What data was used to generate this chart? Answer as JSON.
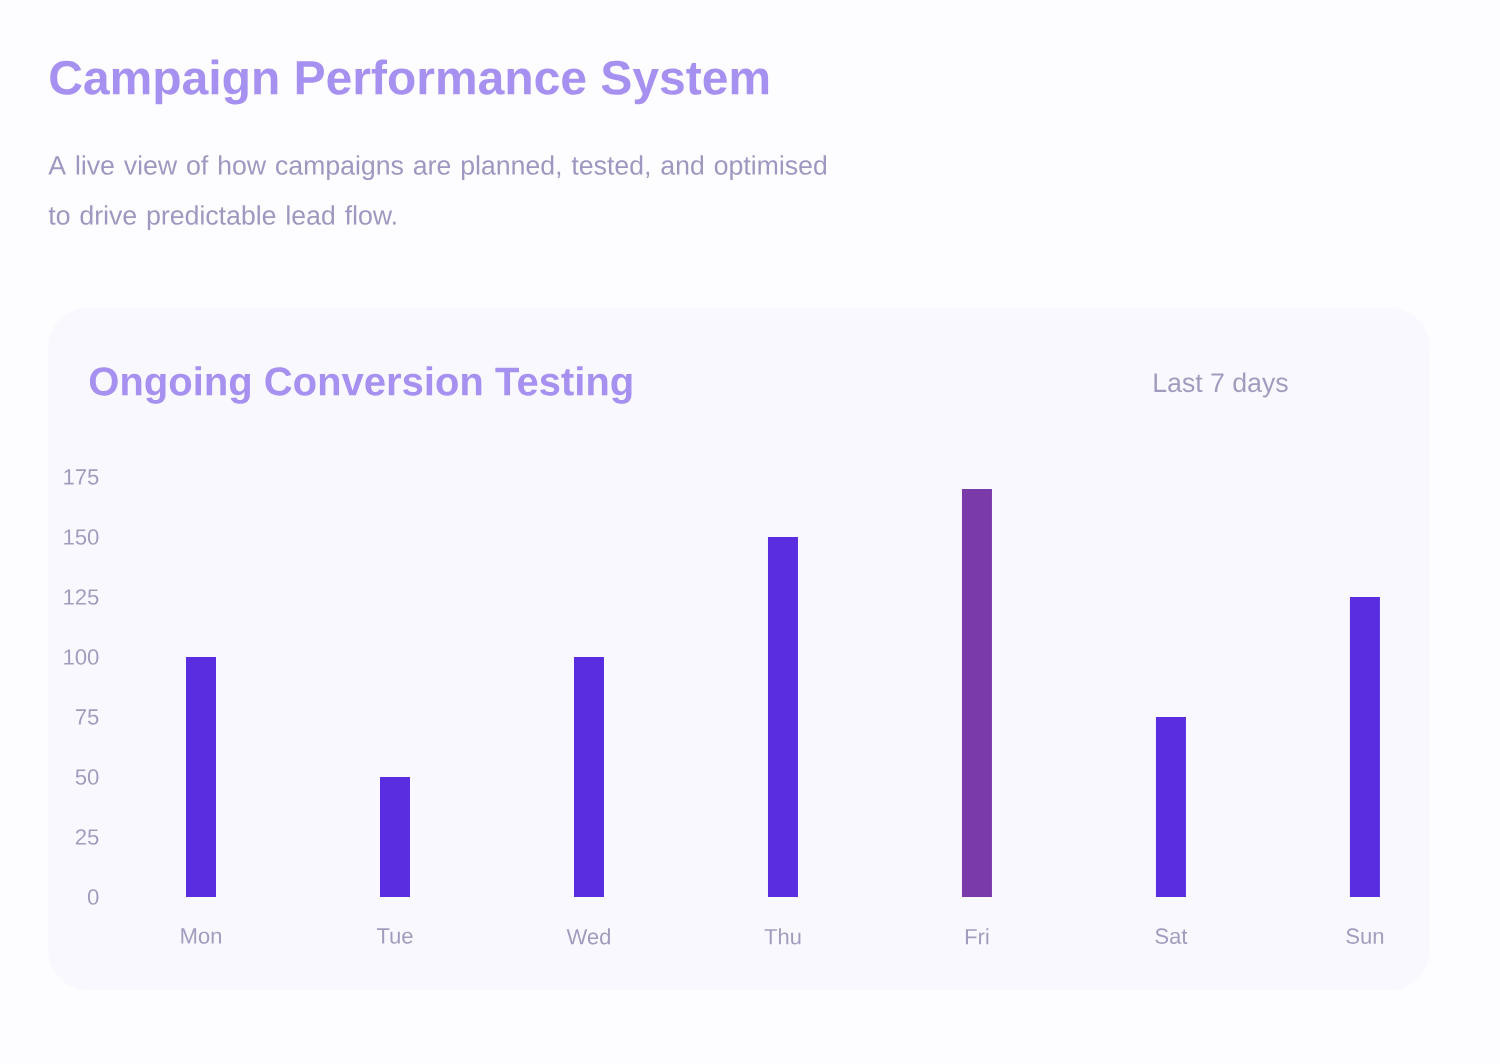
{
  "chart_data": {
    "type": "bar",
    "title": "Campaign Performance System",
    "subtitle": "A live view of how campaigns are planned, tested, and optimised to drive predictable lead flow.",
    "annotations": [
      "Ongoing Conversion Testing",
      "Last 7 days"
    ],
    "categories": [
      "Mon",
      "Tue",
      "Wed",
      "Thu",
      "Fri",
      "Sat",
      "Sun"
    ],
    "values": [
      100,
      50,
      100,
      150,
      170,
      75,
      125
    ],
    "colors": [
      "#5a2ee0",
      "#5a2ee0",
      "#5a2ee0",
      "#5a2ee0",
      "#7a3aaa",
      "#5a2ee0",
      "#5a2ee0"
    ],
    "ylim": [
      0,
      175
    ],
    "yticks": [
      0,
      25,
      50,
      75,
      100,
      125,
      150,
      175
    ]
  }
}
